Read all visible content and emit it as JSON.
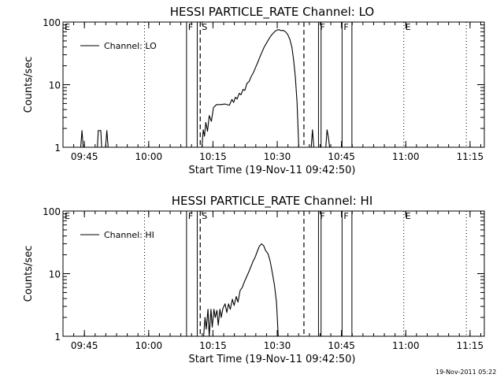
{
  "chart_data": [
    {
      "type": "line",
      "title": "HESSI PARTICLE_RATE Channel: LO",
      "xlabel": "Start Time (19-Nov-11 09:42:50)",
      "ylabel": "Counts/sec",
      "yscale": "log",
      "ylim": [
        1,
        100
      ],
      "xlim_minutes": [
        -2.83,
        95.5
      ],
      "x_tick_labels": [
        "09:45",
        "10:00",
        "10:15",
        "10:30",
        "10:45",
        "11:00",
        "11:15"
      ],
      "x_tick_minutes": [
        2.17,
        17.17,
        32.17,
        47.17,
        62.17,
        77.17,
        92.17
      ],
      "y_tick_labels": [
        "1",
        "10",
        "100"
      ],
      "y_tick_values": [
        1,
        10,
        100
      ],
      "legend": {
        "label": "Channel: LO",
        "placement": "top-left"
      },
      "markers": [
        {
          "label": "E",
          "minute": -2.83,
          "style": "dotted"
        },
        {
          "label": "",
          "minute": 16.2,
          "style": "dotted"
        },
        {
          "label": "F",
          "minute": 26.0,
          "style": "solid"
        },
        {
          "label": "",
          "minute": 28.5,
          "style": "solid"
        },
        {
          "label": "S",
          "minute": 29.2,
          "style": "dashed"
        },
        {
          "label": "",
          "minute": 53.4,
          "style": "dashed"
        },
        {
          "label": "F",
          "minute": 56.8,
          "style": "solid"
        },
        {
          "label": "",
          "minute": 57.4,
          "style": "solid"
        },
        {
          "label": "F",
          "minute": 62.3,
          "style": "solid"
        },
        {
          "label": "",
          "minute": 64.6,
          "style": "solid"
        },
        {
          "label": "E",
          "minute": 76.7,
          "style": "dotted"
        },
        {
          "label": "",
          "minute": 91.3,
          "style": "dotted"
        }
      ],
      "series": [
        {
          "name": "",
          "points": [
            [
              -2.83,
              1.0
            ],
            [
              1.3,
              1.0
            ],
            [
              1.6,
              1.85
            ],
            [
              1.9,
              1.0
            ],
            [
              5.2,
              1.0
            ],
            [
              5.4,
              1.85
            ],
            [
              6.0,
              1.85
            ],
            [
              6.2,
              1.0
            ],
            [
              7.1,
              1.0
            ],
            [
              7.4,
              1.85
            ],
            [
              7.7,
              1.0
            ],
            [
              29.6,
              1.0
            ],
            [
              29.9,
              1.9
            ],
            [
              30.2,
              1.5
            ],
            [
              30.5,
              2.5
            ],
            [
              30.9,
              1.8
            ],
            [
              31.3,
              3.2
            ],
            [
              31.8,
              2.6
            ],
            [
              32.3,
              4.3
            ],
            [
              33.0,
              4.8
            ],
            [
              34.0,
              4.8
            ],
            [
              35.0,
              4.9
            ],
            [
              36.0,
              4.7
            ],
            [
              36.6,
              5.8
            ],
            [
              37.0,
              5.2
            ],
            [
              37.4,
              6.3
            ],
            [
              37.8,
              5.9
            ],
            [
              38.3,
              7.3
            ],
            [
              38.7,
              6.9
            ],
            [
              39.2,
              8.4
            ],
            [
              39.6,
              8.1
            ],
            [
              40.1,
              10.5
            ],
            [
              40.6,
              11.2
            ],
            [
              41.1,
              13.5
            ],
            [
              41.6,
              15.5
            ],
            [
              42.1,
              18.8
            ],
            [
              42.6,
              22.5
            ],
            [
              43.1,
              27.5
            ],
            [
              43.6,
              33.0
            ],
            [
              44.1,
              39.5
            ],
            [
              44.6,
              45.5
            ],
            [
              45.1,
              52.0
            ],
            [
              45.6,
              59.0
            ],
            [
              46.1,
              65.0
            ],
            [
              46.6,
              70.5
            ],
            [
              47.1,
              74.5
            ],
            [
              47.6,
              75.5
            ],
            [
              48.1,
              73.0
            ],
            [
              48.6,
              73.5
            ],
            [
              49.1,
              70.0
            ],
            [
              49.6,
              63.5
            ],
            [
              50.1,
              53.0
            ],
            [
              50.6,
              39.5
            ],
            [
              51.0,
              24.5
            ],
            [
              51.4,
              13.0
            ],
            [
              51.8,
              5.2
            ],
            [
              52.2,
              1.0
            ],
            [
              55.1,
              1.0
            ],
            [
              55.4,
              1.9
            ],
            [
              55.7,
              1.0
            ],
            [
              58.5,
              1.0
            ],
            [
              58.8,
              1.9
            ],
            [
              59.1,
              1.45
            ],
            [
              59.4,
              1.0
            ],
            [
              95.5,
              1.0
            ]
          ]
        }
      ]
    },
    {
      "type": "line",
      "title": "HESSI PARTICLE_RATE Channel: HI",
      "xlabel": "Start Time (19-Nov-11 09:42:50)",
      "ylabel": "Counts/sec",
      "yscale": "log",
      "ylim": [
        1,
        100
      ],
      "xlim_minutes": [
        -2.83,
        95.5
      ],
      "x_tick_labels": [
        "09:45",
        "10:00",
        "10:15",
        "10:30",
        "10:45",
        "11:00",
        "11:15"
      ],
      "x_tick_minutes": [
        2.17,
        17.17,
        32.17,
        47.17,
        62.17,
        77.17,
        92.17
      ],
      "y_tick_labels": [
        "1",
        "10",
        "100"
      ],
      "y_tick_values": [
        1,
        10,
        100
      ],
      "legend": {
        "label": "Channel: HI",
        "placement": "top-left"
      },
      "markers": [
        {
          "label": "E",
          "minute": -2.83,
          "style": "dotted"
        },
        {
          "label": "",
          "minute": 16.2,
          "style": "dotted"
        },
        {
          "label": "F",
          "minute": 26.0,
          "style": "solid"
        },
        {
          "label": "",
          "minute": 28.5,
          "style": "solid"
        },
        {
          "label": "S",
          "minute": 29.2,
          "style": "dashed"
        },
        {
          "label": "",
          "minute": 53.4,
          "style": "dashed"
        },
        {
          "label": "F",
          "minute": 56.8,
          "style": "solid"
        },
        {
          "label": "",
          "minute": 57.4,
          "style": "solid"
        },
        {
          "label": "F",
          "minute": 62.3,
          "style": "solid"
        },
        {
          "label": "",
          "minute": 64.6,
          "style": "solid"
        },
        {
          "label": "E",
          "minute": 76.7,
          "style": "dotted"
        },
        {
          "label": "",
          "minute": 91.3,
          "style": "dotted"
        }
      ],
      "series": [
        {
          "name": "",
          "points": [
            [
              -2.83,
              1.0
            ],
            [
              30.0,
              1.0
            ],
            [
              30.3,
              2.0
            ],
            [
              30.6,
              1.3
            ],
            [
              31.0,
              2.7
            ],
            [
              31.3,
              1.0
            ],
            [
              31.7,
              2.7
            ],
            [
              32.0,
              1.4
            ],
            [
              32.4,
              2.7
            ],
            [
              32.7,
              2.0
            ],
            [
              33.1,
              2.6
            ],
            [
              33.4,
              1.5
            ],
            [
              33.8,
              2.7
            ],
            [
              34.1,
              2.0
            ],
            [
              34.5,
              2.8
            ],
            [
              35.0,
              3.3
            ],
            [
              35.4,
              2.4
            ],
            [
              35.8,
              3.3
            ],
            [
              36.2,
              2.7
            ],
            [
              36.7,
              3.9
            ],
            [
              37.1,
              3.1
            ],
            [
              37.6,
              4.3
            ],
            [
              38.0,
              3.5
            ],
            [
              38.5,
              5.4
            ],
            [
              39.0,
              6.0
            ],
            [
              39.5,
              7.4
            ],
            [
              40.0,
              8.8
            ],
            [
              40.5,
              10.6
            ],
            [
              41.0,
              12.8
            ],
            [
              41.5,
              15.6
            ],
            [
              42.0,
              18.2
            ],
            [
              42.5,
              22.5
            ],
            [
              43.0,
              27.5
            ],
            [
              43.5,
              30.0
            ],
            [
              44.0,
              28.0
            ],
            [
              44.5,
              23.0
            ],
            [
              45.0,
              21.0
            ],
            [
              45.5,
              16.0
            ],
            [
              46.0,
              10.5
            ],
            [
              46.5,
              6.7
            ],
            [
              47.0,
              3.5
            ],
            [
              47.4,
              1.0
            ],
            [
              95.5,
              1.0
            ]
          ]
        }
      ]
    }
  ],
  "footer": {
    "timestamp": "19-Nov-2011 05:22"
  }
}
